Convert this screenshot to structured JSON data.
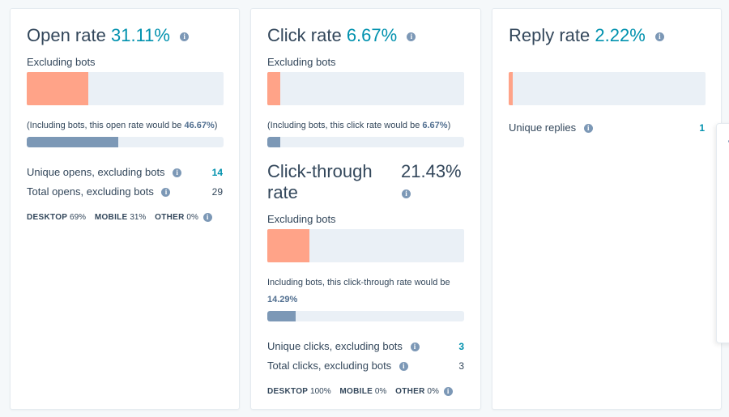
{
  "open_card": {
    "title": "Open rate",
    "rate": "31.11%",
    "excluding_label": "Excluding bots",
    "excluding_fraction": 0.3111,
    "including_prefix": "(Including bots, this open rate would be ",
    "including_value": "46.67%",
    "including_suffix": ")",
    "including_fraction": 0.4667,
    "stats": [
      {
        "label": "Unique opens, excluding bots",
        "value": "14"
      },
      {
        "label": "Total opens, excluding bots",
        "value": "29"
      }
    ],
    "devices": {
      "desktop_label": "DESKTOP",
      "desktop_value": "69%",
      "mobile_label": "MOBILE",
      "mobile_value": "31%",
      "other_label": "OTHER",
      "other_value": "0%"
    }
  },
  "click_card": {
    "title": "Click rate",
    "rate": "6.67%",
    "excluding_label": "Excluding bots",
    "excluding_fraction": 0.0667,
    "including_prefix": "(Including bots, this click rate would be ",
    "including_value": "6.67%",
    "including_suffix": ")",
    "including_fraction": 0.0667,
    "ctr_title_line1": "Click-through",
    "ctr_title_line2": "rate",
    "ctr_rate": "21.43%",
    "ctr_excluding_label": "Excluding bots",
    "ctr_excluding_fraction": 0.2143,
    "ctr_including_text": "Including bots, this click-through rate would be",
    "ctr_including_value": "14.29%",
    "ctr_including_fraction": 0.1429,
    "stats": [
      {
        "label": "Unique clicks, excluding bots",
        "value": "3"
      },
      {
        "label": "Total clicks, excluding bots",
        "value": "3"
      }
    ],
    "devices": {
      "desktop_label": "DESKTOP",
      "desktop_value": "100%",
      "mobile_label": "MOBILE",
      "mobile_value": "0%",
      "other_label": "OTHER",
      "other_value": "0%"
    }
  },
  "reply_card": {
    "title": "Reply rate",
    "rate": "2.22%",
    "excluding_fraction": 0.0222,
    "stats": [
      {
        "label": "Unique replies",
        "value": "1"
      }
    ]
  },
  "colors": {
    "accent": "#0091ae",
    "bar_fill": "#ffa388",
    "bar_track": "#eaf0f6",
    "bar_secondary": "#7c98b6"
  },
  "icons": {
    "info": "i"
  }
}
